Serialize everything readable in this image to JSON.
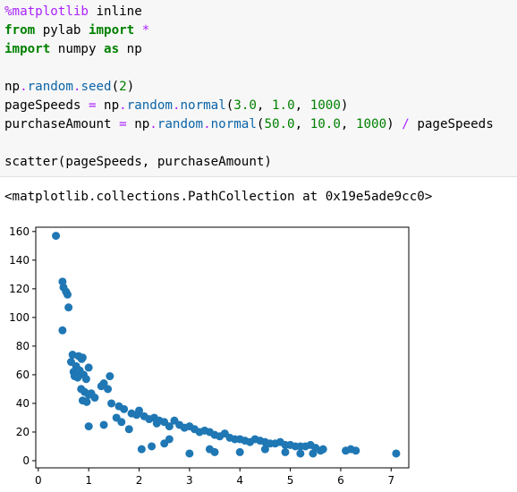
{
  "notebook": {
    "code_lines": [
      [
        {
          "t": "%matplotlib",
          "c": "mg"
        },
        {
          "t": " inline",
          "c": "pr"
        }
      ],
      [
        {
          "t": "from",
          "c": "kw"
        },
        {
          "t": " pylab ",
          "c": "pr"
        },
        {
          "t": "import",
          "c": "kw"
        },
        {
          "t": " ",
          "c": "pr"
        },
        {
          "t": "*",
          "c": "op"
        }
      ],
      [
        {
          "t": "import",
          "c": "kw"
        },
        {
          "t": " numpy ",
          "c": "pr"
        },
        {
          "t": "as",
          "c": "kw"
        },
        {
          "t": " np",
          "c": "pr"
        }
      ],
      [],
      [
        {
          "t": "np",
          "c": "pr"
        },
        {
          "t": ".",
          "c": "op"
        },
        {
          "t": "random",
          "c": "at"
        },
        {
          "t": ".",
          "c": "op"
        },
        {
          "t": "seed",
          "c": "at"
        },
        {
          "t": "(",
          "c": "pr"
        },
        {
          "t": "2",
          "c": "nm"
        },
        {
          "t": ")",
          "c": "pr"
        }
      ],
      [
        {
          "t": "pageSpeeds ",
          "c": "pr"
        },
        {
          "t": "=",
          "c": "op"
        },
        {
          "t": " np",
          "c": "pr"
        },
        {
          "t": ".",
          "c": "op"
        },
        {
          "t": "random",
          "c": "at"
        },
        {
          "t": ".",
          "c": "op"
        },
        {
          "t": "normal",
          "c": "at"
        },
        {
          "t": "(",
          "c": "pr"
        },
        {
          "t": "3.0",
          "c": "nm"
        },
        {
          "t": ", ",
          "c": "pr"
        },
        {
          "t": "1.0",
          "c": "nm"
        },
        {
          "t": ", ",
          "c": "pr"
        },
        {
          "t": "1000",
          "c": "nm"
        },
        {
          "t": ")",
          "c": "pr"
        }
      ],
      [
        {
          "t": "purchaseAmount ",
          "c": "pr"
        },
        {
          "t": "=",
          "c": "op"
        },
        {
          "t": " np",
          "c": "pr"
        },
        {
          "t": ".",
          "c": "op"
        },
        {
          "t": "random",
          "c": "at"
        },
        {
          "t": ".",
          "c": "op"
        },
        {
          "t": "normal",
          "c": "at"
        },
        {
          "t": "(",
          "c": "pr"
        },
        {
          "t": "50.0",
          "c": "nm"
        },
        {
          "t": ", ",
          "c": "pr"
        },
        {
          "t": "10.0",
          "c": "nm"
        },
        {
          "t": ", ",
          "c": "pr"
        },
        {
          "t": "1000",
          "c": "nm"
        },
        {
          "t": ") ",
          "c": "pr"
        },
        {
          "t": "/",
          "c": "op"
        },
        {
          "t": " pageSpeeds",
          "c": "pr"
        }
      ],
      [],
      [
        {
          "t": "scatter(pageSpeeds, purchaseAmount)",
          "c": "pr"
        }
      ]
    ],
    "output_text": "<matplotlib.collections.PathCollection at 0x19e5ade9cc0>"
  },
  "colors": {
    "marker": "#1f77b4"
  },
  "chart_data": {
    "type": "scatter",
    "title": "",
    "xlabel": "",
    "ylabel": "",
    "xlim": [
      -0.05,
      7.35
    ],
    "ylim": [
      -5,
      163
    ],
    "x_ticks": [
      0,
      1,
      2,
      3,
      4,
      5,
      6,
      7
    ],
    "y_ticks": [
      0,
      20,
      40,
      60,
      80,
      100,
      120,
      140,
      160
    ],
    "grid": false,
    "points": [
      [
        0.35,
        157
      ],
      [
        0.48,
        125
      ],
      [
        0.5,
        121
      ],
      [
        0.55,
        118
      ],
      [
        0.58,
        116
      ],
      [
        0.6,
        107
      ],
      [
        0.48,
        91
      ],
      [
        0.68,
        74
      ],
      [
        0.65,
        69
      ],
      [
        0.8,
        73
      ],
      [
        0.86,
        71
      ],
      [
        0.88,
        72
      ],
      [
        0.75,
        66
      ],
      [
        0.7,
        62
      ],
      [
        0.82,
        63
      ],
      [
        0.9,
        60
      ],
      [
        0.95,
        57
      ],
      [
        1.0,
        65
      ],
      [
        0.72,
        59
      ],
      [
        0.78,
        58
      ],
      [
        1.42,
        59
      ],
      [
        1.3,
        54
      ],
      [
        1.25,
        52
      ],
      [
        1.38,
        50
      ],
      [
        0.85,
        50
      ],
      [
        0.92,
        48
      ],
      [
        1.0,
        46
      ],
      [
        1.05,
        47
      ],
      [
        1.12,
        44
      ],
      [
        0.88,
        42
      ],
      [
        0.96,
        41
      ],
      [
        1.0,
        24
      ],
      [
        1.3,
        25
      ],
      [
        1.45,
        40
      ],
      [
        1.6,
        38
      ],
      [
        1.7,
        36
      ],
      [
        1.55,
        30
      ],
      [
        1.65,
        27
      ],
      [
        1.85,
        33
      ],
      [
        1.95,
        32
      ],
      [
        2.0,
        35
      ],
      [
        2.1,
        31
      ],
      [
        2.2,
        29
      ],
      [
        2.3,
        30
      ],
      [
        2.35,
        26
      ],
      [
        2.4,
        28
      ],
      [
        2.5,
        27
      ],
      [
        2.6,
        24
      ],
      [
        2.7,
        28
      ],
      [
        2.8,
        25
      ],
      [
        2.9,
        23
      ],
      [
        3.0,
        24
      ],
      [
        3.1,
        22
      ],
      [
        3.2,
        20
      ],
      [
        3.3,
        21
      ],
      [
        3.4,
        20
      ],
      [
        3.5,
        18
      ],
      [
        3.6,
        17
      ],
      [
        3.7,
        19
      ],
      [
        3.8,
        16
      ],
      [
        3.9,
        15
      ],
      [
        4.0,
        15
      ],
      [
        4.1,
        14
      ],
      [
        4.2,
        13
      ],
      [
        4.3,
        15
      ],
      [
        4.4,
        14
      ],
      [
        4.5,
        13
      ],
      [
        4.6,
        12
      ],
      [
        4.7,
        12
      ],
      [
        4.8,
        13
      ],
      [
        4.9,
        11
      ],
      [
        5.0,
        11
      ],
      [
        5.1,
        10
      ],
      [
        5.2,
        10
      ],
      [
        5.3,
        10
      ],
      [
        5.4,
        11
      ],
      [
        5.5,
        9
      ],
      [
        5.6,
        7
      ],
      [
        5.65,
        8
      ],
      [
        5.45,
        5
      ],
      [
        6.1,
        7
      ],
      [
        6.3,
        7
      ],
      [
        6.2,
        8
      ],
      [
        7.1,
        5
      ],
      [
        2.05,
        8
      ],
      [
        2.5,
        12
      ],
      [
        3.0,
        5
      ],
      [
        3.5,
        6
      ],
      [
        4.0,
        6
      ],
      [
        2.25,
        10
      ],
      [
        1.8,
        22
      ],
      [
        2.6,
        15
      ],
      [
        3.4,
        8
      ],
      [
        4.5,
        8
      ],
      [
        4.9,
        6
      ],
      [
        5.2,
        5
      ]
    ]
  }
}
